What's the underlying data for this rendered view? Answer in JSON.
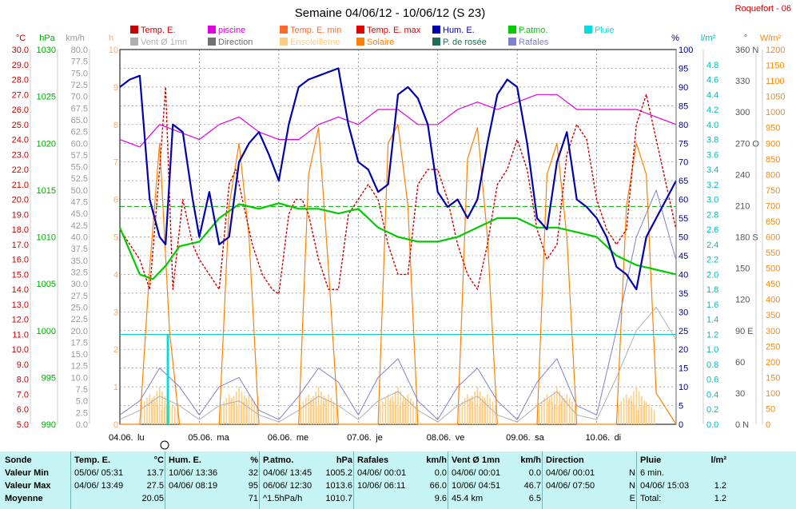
{
  "title": "Semaine 04/06/12 - 10/06/12 (S 23)",
  "station": "Roquefort - 06",
  "legend": [
    {
      "label": "Temp. E.",
      "color": "#cc0000"
    },
    {
      "label": "piscine",
      "color": "#e000e0"
    },
    {
      "label": "Temp. E. min",
      "color": "#ff6a2a"
    },
    {
      "label": "Temp. E. max",
      "color": "#e00000"
    },
    {
      "label": "Hum. E.",
      "color": "#0000b0"
    },
    {
      "label": "P.atmo.",
      "color": "#00cc00"
    },
    {
      "label": "Pluie",
      "color": "#00e0e0"
    },
    {
      "label": "Vent Ø 1mn",
      "color": "#b0b0b0"
    },
    {
      "label": "Direction",
      "color": "#707070"
    },
    {
      "label": "Ensoleilleme",
      "color": "#ffcc80"
    },
    {
      "label": "Solaire",
      "color": "#ff8000"
    },
    {
      "label": "P. de rosée",
      "color": "#1e6e5a"
    },
    {
      "label": "Rafales",
      "color": "#8080d0"
    }
  ],
  "axes": {
    "temp": {
      "unit": "°C",
      "min": 5,
      "max": 30,
      "color": "#cc0000",
      "ticks": [
        "30.0",
        "29.0",
        "28.0",
        "27.0",
        "26.0",
        "25.0",
        "24.0",
        "23.0",
        "22.0",
        "21.0",
        "20.0",
        "19.0",
        "18.0",
        "17.0",
        "16.0",
        "15.0",
        "14.0",
        "13.0",
        "12.0",
        "11.0",
        "10.0",
        "9.0",
        "8.0",
        "7.0",
        "6.0",
        "5.0"
      ]
    },
    "press": {
      "unit": "hPa",
      "min": 990,
      "max": 1030,
      "color": "#00aa00",
      "ticks": [
        "1030",
        "1025",
        "1020",
        "1015",
        "1010",
        "1005",
        "1000",
        "995",
        "990"
      ]
    },
    "wind": {
      "unit": "km/h",
      "min": 0,
      "max": 80,
      "color": "#999999",
      "ticks": [
        "80.0",
        "77.5",
        "75.0",
        "72.5",
        "70.0",
        "67.5",
        "65.0",
        "62.5",
        "60.0",
        "57.5",
        "55.0",
        "52.5",
        "50.0",
        "47.5",
        "45.0",
        "42.5",
        "40.0",
        "37.5",
        "35.0",
        "32.5",
        "30.0",
        "27.5",
        "25.0",
        "22.5",
        "20.0",
        "17.5",
        "15.0",
        "12.5",
        "10.0",
        "7.5",
        "5.0",
        "2.5",
        "0.0"
      ]
    },
    "sun": {
      "unit": "h",
      "min": 0,
      "max": 10,
      "color": "#ffaa66",
      "ticks": [
        "10",
        "9",
        "8",
        "7",
        "6",
        "5",
        "4",
        "3",
        "2",
        "1",
        "0"
      ]
    },
    "hum": {
      "unit": "%",
      "min": 0,
      "max": 100,
      "color": "#000080",
      "ticks": [
        "100",
        "95",
        "90",
        "85",
        "80",
        "75",
        "70",
        "65",
        "60",
        "55",
        "50",
        "45",
        "40",
        "35",
        "30",
        "25",
        "20",
        "15",
        "10",
        "5",
        "0"
      ]
    },
    "rain": {
      "unit": "l/m²",
      "min": 0,
      "max": 5,
      "color": "#00bbbb",
      "ticks": [
        "4.8",
        "4.6",
        "4.4",
        "4.2",
        "4.0",
        "3.8",
        "3.6",
        "3.4",
        "3.2",
        "3.0",
        "2.8",
        "2.6",
        "2.4",
        "2.2",
        "2.0",
        "1.8",
        "1.6",
        "1.4",
        "1.2",
        "1.0",
        "0.8",
        "0.6",
        "0.4",
        "0.2",
        "0.0"
      ]
    },
    "dir": {
      "unit": "°",
      "ticks": [
        "360 N",
        "330",
        "300",
        "270 O",
        "240",
        "210",
        "180 S",
        "150",
        "120",
        "90 E",
        "60",
        "30",
        "0 N"
      ]
    },
    "solar": {
      "unit": "W/m²",
      "min": 0,
      "max": 1200,
      "color": "#ff8800",
      "ticks": [
        "1200",
        "1150",
        "1100",
        "1050",
        "1000",
        "950",
        "900",
        "850",
        "800",
        "750",
        "700",
        "650",
        "600",
        "550",
        "500",
        "450",
        "400",
        "350",
        "300",
        "250",
        "200",
        "150",
        "100",
        "50",
        "0"
      ]
    }
  },
  "days": [
    "04.06.",
    "lu",
    "05.06.",
    "ma",
    "06.06.",
    "me",
    "07.06.",
    "je",
    "08.06.",
    "ve",
    "09.06.",
    "sa",
    "10.06.",
    "di"
  ],
  "chart_data": {
    "type": "line",
    "title": "Semaine 04/06/12 - 10/06/12 (S 23)",
    "x_unit": "hours since 04.06 00:00",
    "series": [
      {
        "name": "Temp. E.",
        "unit": "°C",
        "x": [
          0,
          3,
          6,
          9,
          12,
          13.8,
          16,
          19,
          22,
          24,
          27,
          30,
          33,
          35,
          37,
          40,
          43,
          46,
          48,
          51,
          53,
          55,
          57,
          60,
          63,
          66,
          69,
          72,
          75,
          78,
          81,
          84,
          87,
          90,
          93,
          96,
          99,
          102,
          105,
          108,
          111,
          114,
          117,
          120,
          123,
          126,
          129,
          132,
          135,
          138,
          141,
          144,
          147,
          150,
          153,
          156,
          159,
          162,
          165,
          168
        ],
        "y": [
          18,
          17,
          16,
          14,
          22,
          27.5,
          14,
          20,
          17,
          16,
          15,
          14,
          21,
          22,
          20,
          17,
          15,
          14,
          13.7,
          19,
          20,
          20,
          19,
          16,
          14,
          14,
          19,
          20,
          21,
          20,
          17,
          15,
          15,
          21,
          22,
          22,
          20,
          17,
          15,
          14,
          17,
          21,
          22,
          24,
          22,
          18,
          16,
          17,
          23,
          25,
          24,
          20,
          18,
          17,
          18,
          25,
          27,
          24,
          21,
          18
        ]
      },
      {
        "name": "Hum. E.",
        "unit": "%",
        "x": [
          0,
          3,
          6,
          9,
          12,
          13.8,
          16,
          19,
          22,
          24,
          27,
          30,
          33,
          36,
          39,
          42,
          45,
          48,
          51,
          54,
          57,
          60,
          63,
          66,
          69,
          72,
          75,
          78,
          81,
          84,
          87,
          90,
          93,
          96,
          99,
          102,
          105,
          108,
          111,
          114,
          117,
          120,
          123,
          126,
          129,
          132,
          135,
          138,
          141,
          144,
          147,
          150,
          153,
          156,
          159,
          162,
          165,
          168
        ],
        "y": [
          90,
          92,
          93,
          60,
          50,
          48,
          80,
          78,
          60,
          50,
          62,
          48,
          50,
          70,
          75,
          78,
          72,
          65,
          80,
          90,
          92,
          93,
          94,
          95,
          80,
          70,
          68,
          62,
          64,
          88,
          90,
          87,
          80,
          62,
          58,
          60,
          55,
          60,
          75,
          88,
          92,
          90,
          75,
          55,
          52,
          70,
          78,
          60,
          58,
          55,
          50,
          42,
          40,
          36,
          50,
          55,
          60,
          65
        ]
      },
      {
        "name": "P.atmo.",
        "unit": "hPa",
        "x": [
          0,
          6,
          10,
          14,
          18,
          24,
          30,
          36,
          42,
          48,
          54,
          60,
          66,
          72,
          78,
          84,
          90,
          96,
          102,
          108,
          114,
          120,
          126,
          132,
          138,
          144,
          150,
          156,
          162,
          168
        ],
        "y": [
          1011,
          1006,
          1005.5,
          1007,
          1009,
          1009.5,
          1012,
          1013.5,
          1013,
          1013.6,
          1013,
          1013,
          1012.5,
          1013,
          1011,
          1010,
          1009.5,
          1009.5,
          1010,
          1011,
          1012,
          1012,
          1011,
          1011,
          1010.5,
          1010,
          1008,
          1007,
          1006.5,
          1006
        ]
      },
      {
        "name": "piscine",
        "unit": "°C",
        "x": [
          0,
          6,
          12,
          18,
          24,
          30,
          36,
          42,
          48,
          54,
          60,
          66,
          72,
          78,
          84,
          90,
          96,
          102,
          108,
          114,
          120,
          126,
          132,
          138,
          144,
          150,
          156,
          162,
          168
        ],
        "y": [
          24,
          23.5,
          25,
          24.5,
          24,
          25,
          25.5,
          24.5,
          24,
          24,
          25,
          25.5,
          25,
          26,
          26,
          25,
          25,
          26,
          26.5,
          26,
          26.5,
          27,
          27,
          26,
          26,
          26,
          26,
          25.5,
          25
        ]
      },
      {
        "name": "Rafales",
        "unit": "km/h",
        "x": [
          0,
          6,
          12,
          18,
          24,
          30,
          36,
          42,
          48,
          54,
          60,
          66,
          72,
          78,
          84,
          90,
          96,
          102,
          108,
          114,
          120,
          126,
          132,
          138,
          144,
          150,
          156,
          162,
          168
        ],
        "y": [
          2,
          5,
          12,
          8,
          2,
          8,
          10,
          3,
          1,
          6,
          12,
          9,
          2,
          10,
          14,
          5,
          1,
          8,
          12,
          5,
          1,
          9,
          14,
          4,
          2,
          20,
          40,
          50,
          35
        ]
      },
      {
        "name": "Vent Ø 1mn",
        "unit": "km/h",
        "x": [
          0,
          6,
          12,
          18,
          24,
          30,
          36,
          42,
          48,
          54,
          60,
          66,
          72,
          78,
          84,
          90,
          96,
          102,
          108,
          114,
          120,
          126,
          132,
          138,
          144,
          150,
          156,
          162,
          168
        ],
        "y": [
          1,
          3,
          6,
          4,
          1,
          4,
          5,
          2,
          0.5,
          3,
          6,
          4,
          1,
          5,
          7,
          3,
          0.5,
          4,
          6,
          2,
          0.5,
          4,
          7,
          2,
          1,
          10,
          20,
          25,
          18
        ]
      },
      {
        "name": "Solaire",
        "unit": "W/m²",
        "x": [
          0,
          6,
          9,
          12,
          15,
          18,
          24,
          30,
          33,
          36,
          39,
          42,
          48,
          54,
          57,
          60,
          63,
          66,
          72,
          78,
          81,
          84,
          87,
          90,
          96,
          102,
          105,
          108,
          111,
          114,
          120,
          126,
          129,
          132,
          135,
          138,
          144,
          150,
          153,
          156,
          159,
          162,
          168
        ],
        "y": [
          0,
          0,
          500,
          900,
          300,
          0,
          0,
          0,
          700,
          900,
          600,
          0,
          0,
          0,
          800,
          950,
          500,
          0,
          0,
          0,
          900,
          960,
          700,
          0,
          0,
          0,
          850,
          950,
          600,
          0,
          0,
          0,
          800,
          900,
          600,
          0,
          0,
          0,
          700,
          900,
          800,
          100,
          0
        ]
      },
      {
        "name": "Ensoleilleme",
        "unit": "h",
        "x": [
          0,
          9,
          12,
          15,
          24,
          33,
          36,
          39,
          48,
          57,
          60,
          63,
          72,
          81,
          84,
          87,
          96,
          105,
          108,
          111,
          120,
          129,
          132,
          135,
          144,
          153,
          156,
          159,
          168
        ],
        "y": [
          0,
          0.8,
          1,
          0.6,
          0,
          0.8,
          1,
          0.8,
          0,
          0.8,
          1,
          0.8,
          0,
          0.8,
          1,
          0.8,
          0,
          0.8,
          1,
          0.8,
          0,
          0.8,
          1,
          0.8,
          0,
          0.8,
          1,
          0.6,
          0
        ]
      },
      {
        "name": "Pluie",
        "unit": "l/m²",
        "x": [
          14.5,
          15.5
        ],
        "y": [
          1.2,
          1.2
        ]
      }
    ],
    "rain_level": 1.2,
    "pressure_reference": 1013.25,
    "x_ticks": [
      "04.06. lu",
      "05.06. ma",
      "06.06. me",
      "07.06. je",
      "08.06. ve",
      "09.06. sa",
      "10.06. di"
    ]
  },
  "summary": {
    "row_labels": [
      "Sonde",
      "Valeur Min",
      "Valeur Max",
      "Moyenne"
    ],
    "blocks": [
      {
        "title": "Temp. E.",
        "unit": "°C",
        "min_time": "05/06/ 05:31",
        "min": "13.7",
        "max_time": "04/06/ 13:49",
        "max": "27.5",
        "avg_label": "",
        "avg": "20.05"
      },
      {
        "title": "Hum. E.",
        "unit": "%",
        "min_time": "10/06/ 13:36",
        "min": "32",
        "max_time": "04/06/ 08:19",
        "max": "95",
        "avg_label": "",
        "avg": "71"
      },
      {
        "title": "P.atmo.",
        "unit": "hPa",
        "min_time": "04/06/ 13:45",
        "min": "1005.2",
        "max_time": "06/06/ 12:30",
        "max": "1013.6",
        "avg_label": "^1.5hPa/h",
        "avg": "1010.7"
      },
      {
        "title": "Rafales",
        "unit": "km/h",
        "min_time": "04/06/ 00:01",
        "min": "0.0",
        "max_time": "10/06/ 06:11",
        "max": "66.0",
        "avg_label": "",
        "avg": "9.6"
      },
      {
        "title": "Vent Ø 1mn",
        "unit": "km/h",
        "min_time": "04/06/ 00:01",
        "min": "0.0",
        "max_time": "10/06/ 04:51",
        "max": "46.7",
        "avg_label": "45.4 km",
        "avg": "6.5"
      },
      {
        "title": "Direction",
        "unit": "",
        "min_time": "04/06/ 00:01",
        "min": "N",
        "max_time": "04/06/ 07:50",
        "max": "N",
        "avg_label": "",
        "avg": "E"
      },
      {
        "title": "Pluie",
        "unit": "l/m²",
        "min_time": "6 min.",
        "min": "",
        "max_time": "04/06/ 15:03",
        "max": "1.2",
        "avg_label": "Total:",
        "avg": "1.2"
      }
    ]
  }
}
